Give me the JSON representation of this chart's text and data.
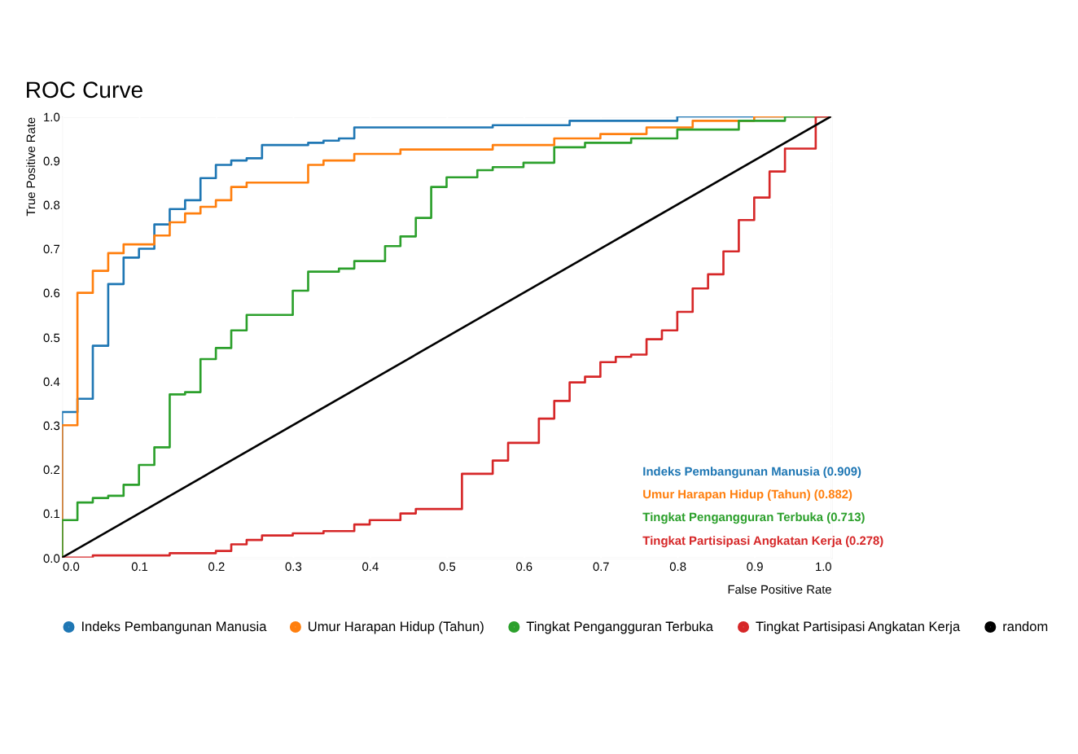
{
  "chart_data": {
    "type": "step",
    "title": "ROC Curve",
    "xlabel": "False Positive Rate",
    "ylabel": "True Positive Rate",
    "xlim": [
      0,
      1
    ],
    "ylim": [
      0,
      1
    ],
    "xticks": [
      {
        "value": 0,
        "label": "0.0"
      },
      0.1,
      0.2,
      0.3,
      0.4,
      0.5,
      0.6,
      0.7,
      0.8,
      0.9,
      {
        "value": 1,
        "label": "1.0"
      }
    ],
    "yticks": [
      {
        "value": 0,
        "label": "0.0"
      },
      0.1,
      0.2,
      0.3,
      0.4,
      0.5,
      0.6,
      0.7,
      0.8,
      0.9,
      {
        "value": 1,
        "label": "1.0"
      }
    ],
    "grid": true,
    "legend": "bottom",
    "series": [
      {
        "name": "Indeks Pembangunan Manusia",
        "color": "#1f77b4",
        "x": [
          0,
          0,
          0.02,
          0.04,
          0.06,
          0.08,
          0.1,
          0.12,
          0.14,
          0.16,
          0.18,
          0.2,
          0.22,
          0.24,
          0.26,
          0.32,
          0.34,
          0.36,
          0.38,
          0.56,
          0.66,
          0.8,
          1
        ],
        "values": [
          0,
          0.33,
          0.36,
          0.48,
          0.62,
          0.68,
          0.7,
          0.755,
          0.79,
          0.81,
          0.86,
          0.89,
          0.9,
          0.905,
          0.935,
          0.94,
          0.945,
          0.95,
          0.975,
          0.98,
          0.99,
          1.0,
          1.0
        ]
      },
      {
        "name": "Umur Harapan Hidup (Tahun)",
        "color": "#ff7f0e",
        "x": [
          0,
          0,
          0.02,
          0.04,
          0.06,
          0.08,
          0.12,
          0.14,
          0.16,
          0.18,
          0.2,
          0.22,
          0.24,
          0.32,
          0.34,
          0.38,
          0.44,
          0.56,
          0.64,
          0.7,
          0.76,
          0.82,
          0.9,
          1
        ],
        "values": [
          0,
          0.3,
          0.6,
          0.65,
          0.69,
          0.71,
          0.73,
          0.76,
          0.78,
          0.795,
          0.81,
          0.84,
          0.85,
          0.89,
          0.9,
          0.915,
          0.925,
          0.935,
          0.95,
          0.96,
          0.975,
          0.99,
          1.0,
          1.0
        ]
      },
      {
        "name": "Tingkat Pengangguran Terbuka",
        "color": "#2ca02c",
        "x": [
          0,
          0,
          0.02,
          0.04,
          0.06,
          0.08,
          0.1,
          0.12,
          0.14,
          0.16,
          0.18,
          0.2,
          0.22,
          0.24,
          0.3,
          0.32,
          0.36,
          0.38,
          0.42,
          0.44,
          0.46,
          0.48,
          0.5,
          0.54,
          0.56,
          0.6,
          0.64,
          0.68,
          0.74,
          0.8,
          0.88,
          0.94,
          1
        ],
        "values": [
          0,
          0.085,
          0.125,
          0.135,
          0.14,
          0.165,
          0.21,
          0.25,
          0.37,
          0.375,
          0.45,
          0.475,
          0.515,
          0.55,
          0.605,
          0.648,
          0.655,
          0.672,
          0.706,
          0.728,
          0.77,
          0.84,
          0.862,
          0.878,
          0.885,
          0.895,
          0.93,
          0.94,
          0.95,
          0.97,
          0.99,
          1.0,
          1.0
        ]
      },
      {
        "name": "Tingkat Partisipasi Angkatan Kerja",
        "color": "#d62728",
        "x": [
          0,
          0.04,
          0.14,
          0.2,
          0.22,
          0.24,
          0.26,
          0.3,
          0.34,
          0.38,
          0.4,
          0.44,
          0.46,
          0.52,
          0.56,
          0.58,
          0.62,
          0.64,
          0.66,
          0.68,
          0.7,
          0.72,
          0.74,
          0.76,
          0.78,
          0.8,
          0.82,
          0.84,
          0.86,
          0.88,
          0.9,
          0.92,
          0.94,
          0.98,
          1
        ],
        "values": [
          0,
          0.005,
          0.01,
          0.015,
          0.03,
          0.04,
          0.05,
          0.055,
          0.06,
          0.075,
          0.085,
          0.1,
          0.11,
          0.19,
          0.22,
          0.26,
          0.315,
          0.355,
          0.397,
          0.41,
          0.443,
          0.455,
          0.46,
          0.495,
          0.515,
          0.557,
          0.61,
          0.642,
          0.694,
          0.765,
          0.816,
          0.875,
          0.927,
          1.0,
          1.0
        ]
      },
      {
        "name": "random",
        "color": "#000000",
        "type": "line",
        "x": [
          0,
          1
        ],
        "values": [
          0,
          1
        ]
      }
    ],
    "annotations": [
      "Indeks Pembangunan Manusia (0.909)",
      "Umur Harapan Hidup (Tahun) (0.882)",
      "Tingkat Pengangguran Terbuka (0.713)",
      "Tingkat Partisipasi Angkatan Kerja (0.278)"
    ]
  }
}
